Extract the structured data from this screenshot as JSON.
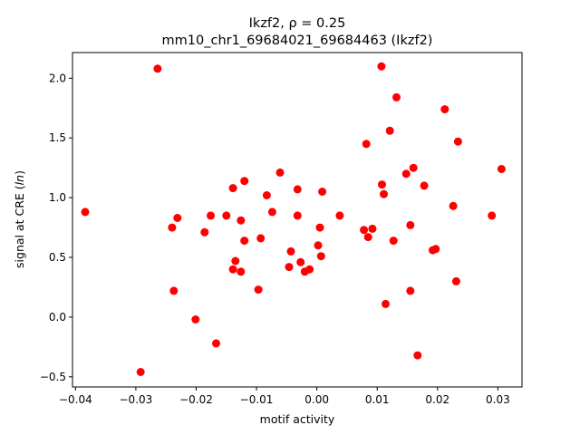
{
  "chart_data": {
    "type": "scatter",
    "title": "Ikzf2, ρ = 0.25",
    "subtitle": "mm10_chr1_69684021_69684463 (Ikzf2)",
    "xlabel": "motif activity",
    "ylabel": "signal at CRE (ln)",
    "xlim": [
      -0.0405,
      0.034
    ],
    "ylim": [
      -0.585,
      2.215
    ],
    "xticks": [
      -0.04,
      -0.03,
      -0.02,
      -0.01,
      0.0,
      0.01,
      0.02,
      0.03
    ],
    "xtick_labels": [
      "−0.04",
      "−0.03",
      "−0.02",
      "−0.01",
      "0.00",
      "0.01",
      "0.02",
      "0.03"
    ],
    "yticks": [
      -0.5,
      0.0,
      0.5,
      1.0,
      1.5,
      2.0
    ],
    "ytick_labels": [
      "−0.5",
      "0.0",
      "0.5",
      "1.0",
      "1.5",
      "2.0"
    ],
    "grid": false,
    "marker_color": "#ff0000",
    "points": [
      {
        "x": -0.0384,
        "y": 0.88
      },
      {
        "x": -0.0292,
        "y": -0.46
      },
      {
        "x": -0.0264,
        "y": 2.08
      },
      {
        "x": -0.024,
        "y": 0.75
      },
      {
        "x": -0.0237,
        "y": 0.22
      },
      {
        "x": -0.0231,
        "y": 0.83
      },
      {
        "x": -0.0201,
        "y": -0.02
      },
      {
        "x": -0.0186,
        "y": 0.71
      },
      {
        "x": -0.0176,
        "y": 0.85
      },
      {
        "x": -0.0167,
        "y": -0.22
      },
      {
        "x": -0.015,
        "y": 0.85
      },
      {
        "x": -0.0139,
        "y": 1.08
      },
      {
        "x": -0.0139,
        "y": 0.4
      },
      {
        "x": -0.0135,
        "y": 0.47
      },
      {
        "x": -0.0126,
        "y": 0.81
      },
      {
        "x": -0.0126,
        "y": 0.38
      },
      {
        "x": -0.012,
        "y": 0.64
      },
      {
        "x": -0.012,
        "y": 1.14
      },
      {
        "x": -0.0097,
        "y": 0.23
      },
      {
        "x": -0.0093,
        "y": 0.66
      },
      {
        "x": -0.0083,
        "y": 1.02
      },
      {
        "x": -0.0074,
        "y": 0.88
      },
      {
        "x": -0.0061,
        "y": 1.21
      },
      {
        "x": -0.0046,
        "y": 0.42
      },
      {
        "x": -0.0043,
        "y": 0.55
      },
      {
        "x": -0.0032,
        "y": 1.07
      },
      {
        "x": -0.0032,
        "y": 0.85
      },
      {
        "x": -0.0027,
        "y": 0.46
      },
      {
        "x": -0.002,
        "y": 0.38
      },
      {
        "x": -0.0012,
        "y": 0.4
      },
      {
        "x": 0.0002,
        "y": 0.6
      },
      {
        "x": 0.0005,
        "y": 0.75
      },
      {
        "x": 0.0007,
        "y": 0.51
      },
      {
        "x": 0.0009,
        "y": 1.05
      },
      {
        "x": 0.0038,
        "y": 0.85
      },
      {
        "x": 0.0078,
        "y": 0.73
      },
      {
        "x": 0.0082,
        "y": 1.45
      },
      {
        "x": 0.0085,
        "y": 0.67
      },
      {
        "x": 0.0092,
        "y": 0.74
      },
      {
        "x": 0.0107,
        "y": 2.1
      },
      {
        "x": 0.0108,
        "y": 1.11
      },
      {
        "x": 0.0111,
        "y": 1.03
      },
      {
        "x": 0.0114,
        "y": 0.11
      },
      {
        "x": 0.0121,
        "y": 1.56
      },
      {
        "x": 0.0127,
        "y": 0.64
      },
      {
        "x": 0.0132,
        "y": 1.84
      },
      {
        "x": 0.0148,
        "y": 1.2
      },
      {
        "x": 0.0155,
        "y": 0.77
      },
      {
        "x": 0.0155,
        "y": 0.22
      },
      {
        "x": 0.016,
        "y": 1.25
      },
      {
        "x": 0.0167,
        "y": -0.32
      },
      {
        "x": 0.0178,
        "y": 1.1
      },
      {
        "x": 0.0192,
        "y": 0.56
      },
      {
        "x": 0.0197,
        "y": 0.57
      },
      {
        "x": 0.0212,
        "y": 1.74
      },
      {
        "x": 0.0226,
        "y": 0.93
      },
      {
        "x": 0.0231,
        "y": 0.3
      },
      {
        "x": 0.0234,
        "y": 1.47
      },
      {
        "x": 0.029,
        "y": 0.85
      },
      {
        "x": 0.0306,
        "y": 1.24
      }
    ]
  }
}
